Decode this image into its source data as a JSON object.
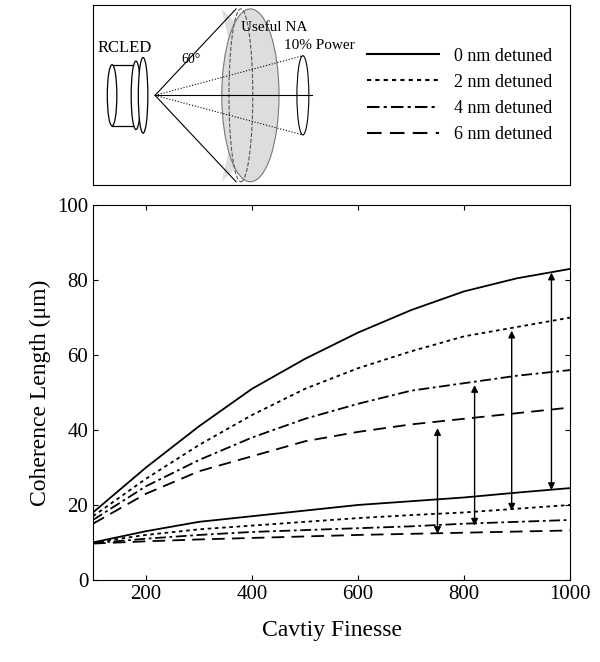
{
  "chart_data": {
    "type": "line",
    "x_label": "Cavtiy Finesse",
    "y_label": "Coherence Length (μm)",
    "x": [
      100,
      200,
      300,
      400,
      500,
      600,
      700,
      800,
      900,
      1000
    ],
    "xlim": [
      100,
      1000
    ],
    "xticks": [
      200,
      400,
      600,
      800,
      1000
    ],
    "ylim": [
      0,
      100
    ],
    "yticks": [
      0,
      20,
      40,
      60,
      80,
      100
    ],
    "grid": false,
    "legend": "center right",
    "series": [
      {
        "name": "0 nm detuned",
        "color": "#000000",
        "line_style": "solid",
        "values": [
          18,
          30,
          41,
          51,
          59,
          66,
          72,
          77,
          80.5,
          83
        ]
      },
      {
        "name": "2 nm detuned",
        "color": "#000000",
        "line_style": "dotted",
        "values": [
          17,
          27,
          36,
          44,
          51,
          56.5,
          61,
          65,
          67.5,
          70
        ]
      },
      {
        "name": "4 nm detuned",
        "color": "#000000",
        "line_style": "dashdot",
        "values": [
          16,
          25,
          32,
          38,
          43,
          47,
          50.5,
          52.5,
          54.5,
          56
        ]
      },
      {
        "name": "6 nm detuned",
        "color": "#000000",
        "line_style": "dashed",
        "values": [
          15,
          23,
          29,
          33,
          37,
          39.5,
          41.5,
          43,
          44.5,
          46
        ]
      },
      {
        "name": "0 nm detuned",
        "color": "#000000",
        "line_style": "solid",
        "values": [
          10,
          13,
          15.5,
          17,
          18.5,
          20,
          21,
          22,
          23.3,
          24.5
        ]
      },
      {
        "name": "2 nm detuned",
        "color": "#000000",
        "line_style": "dotted",
        "values": [
          10,
          12,
          13.5,
          14.5,
          15.5,
          16.5,
          17.3,
          18,
          19,
          20
        ]
      },
      {
        "name": "4 nm detuned",
        "color": "#000000",
        "line_style": "dashdot",
        "values": [
          9.8,
          11,
          12,
          12.8,
          13.3,
          13.8,
          14.3,
          15,
          15.5,
          16
        ]
      },
      {
        "name": "6 nm detuned",
        "color": "#000000",
        "line_style": "dashed",
        "values": [
          9.7,
          10.3,
          10.8,
          11.2,
          11.6,
          12,
          12.3,
          12.6,
          12.9,
          13.2
        ]
      }
    ],
    "arrows": [
      {
        "x": 750,
        "from": 12.3,
        "to": 40.5
      },
      {
        "x": 820,
        "from": 14.5,
        "to": 52
      },
      {
        "x": 890,
        "from": 18.5,
        "to": 66.5
      },
      {
        "x": 965,
        "from": 24,
        "to": 82
      }
    ]
  },
  "inset": {
    "source": "RCLED",
    "region": "Useful NA",
    "angle": "60°",
    "cone": "10% Power"
  }
}
